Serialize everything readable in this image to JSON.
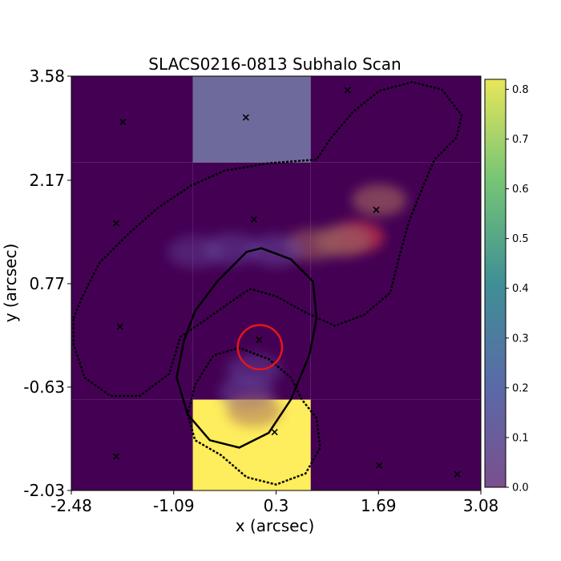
{
  "chart_data": {
    "type": "heatmap",
    "title": "SLACS0216-0813 Subhalo Scan",
    "xlabel": "x (arcsec)",
    "ylabel": "y (arcsec)",
    "xlim": [
      -2.48,
      3.08
    ],
    "ylim": [
      -2.03,
      3.58
    ],
    "xticks": [
      "-2.48",
      "-1.09",
      "0.3",
      "1.69",
      "3.08"
    ],
    "yticks": [
      "-2.03",
      "-0.63",
      "0.77",
      "2.17",
      "3.58"
    ],
    "colorbar": {
      "min": 0.0,
      "max": 0.82,
      "ticks": [
        "0.0",
        "0.1",
        "0.2",
        "0.3",
        "0.4",
        "0.5",
        "0.6",
        "0.7",
        "0.8"
      ],
      "colormap": "viridis"
    },
    "scan_cells": [
      {
        "x": [
          -2.48,
          -0.83
        ],
        "y": [
          2.41,
          3.58
        ],
        "value": 0.0
      },
      {
        "x": [
          -0.83,
          0.77
        ],
        "y": [
          2.41,
          3.58
        ],
        "value": 0.14
      },
      {
        "x": [
          0.77,
          3.08
        ],
        "y": [
          2.41,
          3.58
        ],
        "value": 0.0
      },
      {
        "x": [
          -2.48,
          -0.83
        ],
        "y": [
          -0.8,
          2.41
        ],
        "value": 0.0
      },
      {
        "x": [
          -0.83,
          0.77
        ],
        "y": [
          -0.8,
          2.41
        ],
        "value": 0.0
      },
      {
        "x": [
          0.77,
          3.08
        ],
        "y": [
          -0.8,
          2.41
        ],
        "value": 0.0
      },
      {
        "x": [
          -2.48,
          -0.83
        ],
        "y": [
          -2.03,
          -0.8
        ],
        "value": 0.0
      },
      {
        "x": [
          -0.83,
          0.77
        ],
        "y": [
          -2.03,
          -0.8
        ],
        "value": 0.82
      },
      {
        "x": [
          0.77,
          3.08
        ],
        "y": [
          -2.03,
          -0.8
        ],
        "value": 0.0
      }
    ],
    "markers": [
      {
        "x": -0.11,
        "y": 3.02
      },
      {
        "x": -1.78,
        "y": 2.96
      },
      {
        "x": 1.27,
        "y": 3.39
      },
      {
        "x": -1.87,
        "y": 1.59
      },
      {
        "x": 0.0,
        "y": 1.64
      },
      {
        "x": 1.66,
        "y": 1.77
      },
      {
        "x": -1.82,
        "y": 0.19
      },
      {
        "x": 0.07,
        "y": 0.01
      },
      {
        "x": 0.28,
        "y": -1.24
      },
      {
        "x": -1.87,
        "y": -1.57
      },
      {
        "x": 1.7,
        "y": -1.69
      },
      {
        "x": 2.76,
        "y": -1.81
      }
    ],
    "selected_position": {
      "x": 0.08,
      "y": -0.09,
      "radius": 0.3
    },
    "arc_emission": [
      {
        "x": 1.4,
        "y": 1.4,
        "value": 0.5
      },
      {
        "x": 1.7,
        "y": 1.9,
        "value": 0.3
      },
      {
        "x": 1.2,
        "y": 1.35,
        "value": 0.35
      },
      {
        "x": 0.8,
        "y": 1.3,
        "value": 0.22
      },
      {
        "x": 0.3,
        "y": 1.22,
        "value": 0.15
      },
      {
        "x": -0.3,
        "y": 1.24,
        "value": 0.12
      },
      {
        "x": -0.8,
        "y": 1.2,
        "value": 0.08
      },
      {
        "x": 0.0,
        "y": -0.4,
        "value": 0.12
      },
      {
        "x": -0.1,
        "y": -0.7,
        "value": 0.15
      },
      {
        "x": 0.0,
        "y": -0.95,
        "value": 0.22
      }
    ]
  }
}
